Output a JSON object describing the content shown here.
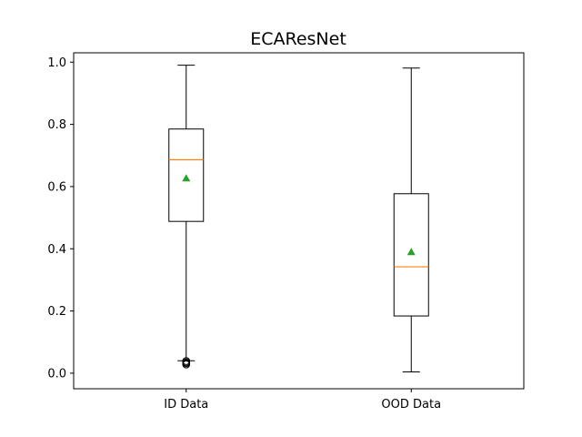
{
  "chart_data": {
    "type": "boxplot",
    "title": "ECAResNet",
    "xlabel": "",
    "ylabel": "",
    "categories": [
      "ID Data",
      "OOD Data"
    ],
    "ylim": [
      -0.05,
      1.03
    ],
    "yticks": [
      0.0,
      0.2,
      0.4,
      0.6,
      0.8,
      1.0
    ],
    "ytick_labels": [
      "0.0",
      "0.2",
      "0.4",
      "0.6",
      "0.8",
      "1.0"
    ],
    "grid": false,
    "boxes": [
      {
        "category": "ID Data",
        "whisker_low": 0.04,
        "q1": 0.488,
        "median": 0.686,
        "q3": 0.785,
        "whisker_high": 0.99,
        "mean": 0.627,
        "outliers": [
          0.039,
          0.035,
          0.032,
          0.028
        ]
      },
      {
        "category": "OOD Data",
        "whisker_low": 0.004,
        "q1": 0.184,
        "median": 0.342,
        "q3": 0.577,
        "whisker_high": 0.981,
        "mean": 0.39,
        "outliers": []
      }
    ],
    "colors": {
      "box": "#000000",
      "median": "#ff7f0e",
      "mean": "#2ca02c",
      "flier": "#000000"
    }
  }
}
